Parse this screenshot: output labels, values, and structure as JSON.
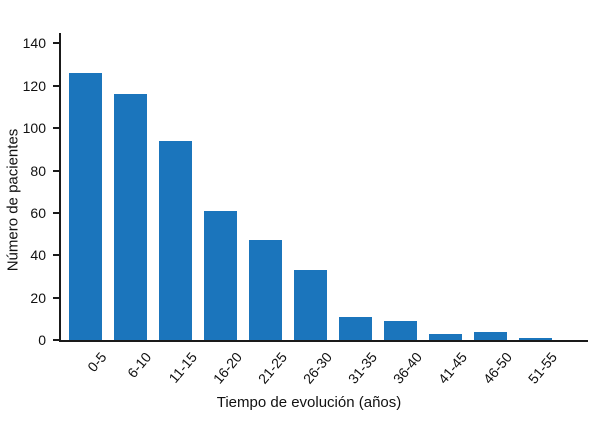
{
  "figure": {
    "background": "#ffffff",
    "bar_color": "#1b75bc",
    "axis_color": "#1a1a1a"
  },
  "chart_data": {
    "type": "bar",
    "title": "",
    "xlabel": "Tiempo de evolución (años)",
    "ylabel": "Número de pacientes",
    "categories": [
      "0-5",
      "6-10",
      "11-15",
      "16-20",
      "21-25",
      "26-30",
      "31-35",
      "36-40",
      "41-45",
      "46-50",
      "51-55"
    ],
    "values": [
      126,
      116,
      94,
      61,
      47,
      33,
      11,
      9,
      3,
      4,
      1
    ],
    "ylim": [
      0,
      140
    ],
    "yticks": [
      0,
      20,
      40,
      60,
      80,
      100,
      120,
      140
    ],
    "grid": false,
    "legend": null,
    "bar_color": "#1b75bc",
    "xtick_rotation_deg": 50
  }
}
